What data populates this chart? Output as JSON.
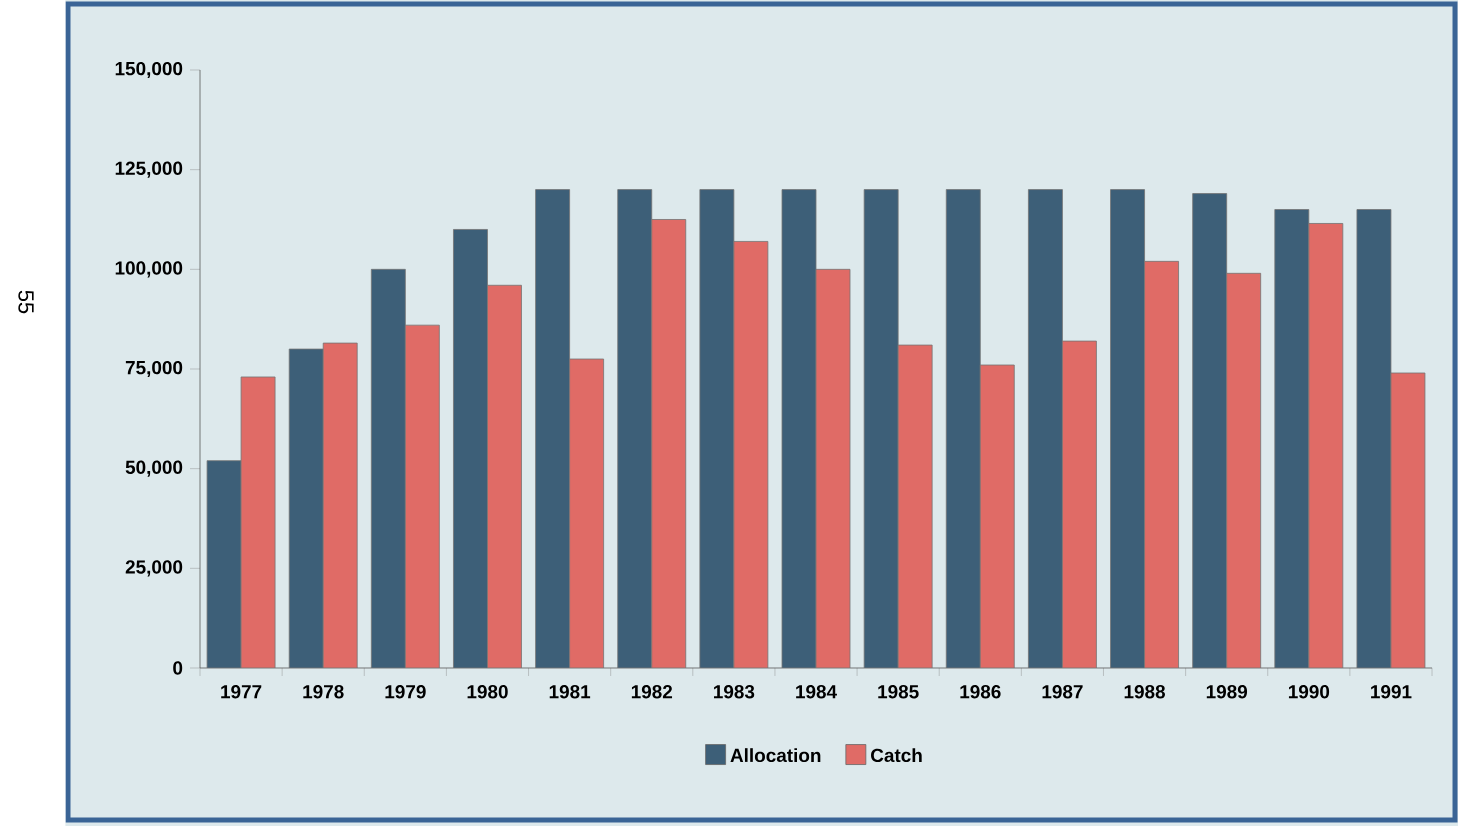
{
  "chart_data": {
    "type": "bar",
    "categories": [
      "1977",
      "1978",
      "1979",
      "1980",
      "1981",
      "1982",
      "1983",
      "1984",
      "1985",
      "1986",
      "1987",
      "1988",
      "1989",
      "1990",
      "1991"
    ],
    "series": [
      {
        "name": "Allocation",
        "color": "#3d5f78",
        "values": [
          52000,
          80000,
          100000,
          110000,
          120000,
          120000,
          120000,
          120000,
          120000,
          120000,
          120000,
          120000,
          119000,
          115000,
          115000
        ]
      },
      {
        "name": "Catch",
        "color": "#e06b66",
        "values": [
          73000,
          81500,
          86000,
          96000,
          77500,
          112500,
          107000,
          100000,
          81000,
          76000,
          82000,
          102000,
          99000,
          111500,
          74000
        ]
      }
    ],
    "ylim": [
      0,
      150000
    ],
    "yticks": [
      {
        "value": 0,
        "label": "0"
      },
      {
        "value": 25000,
        "label": "25,000"
      },
      {
        "value": 50000,
        "label": "50,000"
      },
      {
        "value": 75000,
        "label": "75,000"
      },
      {
        "value": 100000,
        "label": "100,000"
      },
      {
        "value": 125000,
        "label": "125,000"
      },
      {
        "value": 150000,
        "label": "150,000"
      }
    ],
    "grid": false,
    "legend": "bottom",
    "annotations": [
      "55"
    ]
  }
}
